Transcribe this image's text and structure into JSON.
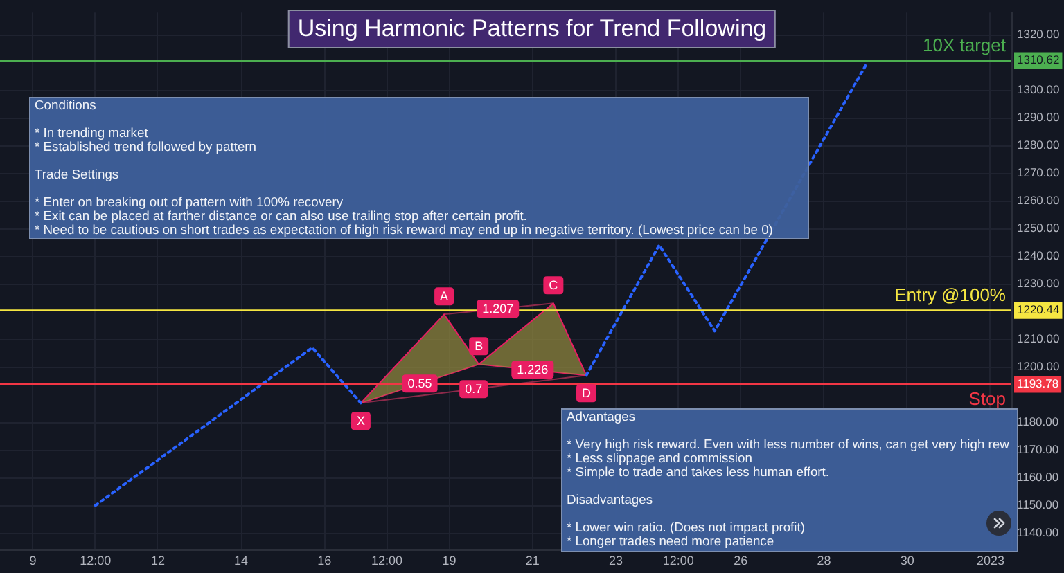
{
  "chart_data": {
    "type": "line",
    "title": "Using Harmonic Patterns for Trend Following",
    "xlim": [
      "2022-12-08T05:00",
      "2023-01-01T12:00"
    ],
    "ylim": [
      1134,
      1328
    ],
    "xticks": [
      {
        "value": "2022-12-09",
        "label": "9"
      },
      {
        "value": "2022-12-10T12:00",
        "label": "12:00"
      },
      {
        "value": "2022-12-12",
        "label": "12"
      },
      {
        "value": "2022-12-14",
        "label": "14"
      },
      {
        "value": "2022-12-16",
        "label": "16"
      },
      {
        "value": "2022-12-17T12:00",
        "label": "12:00"
      },
      {
        "value": "2022-12-19",
        "label": "19"
      },
      {
        "value": "2022-12-21",
        "label": "21"
      },
      {
        "value": "2022-12-23",
        "label": "23"
      },
      {
        "value": "2022-12-24T12:00",
        "label": "12:00"
      },
      {
        "value": "2022-12-26",
        "label": "26"
      },
      {
        "value": "2022-12-28",
        "label": "28"
      },
      {
        "value": "2022-12-30",
        "label": "30"
      },
      {
        "value": "2023-01-01",
        "label": "2023"
      }
    ],
    "yticks": [
      {
        "value": 1140,
        "label": "1140.00"
      },
      {
        "value": 1150,
        "label": "1150.00"
      },
      {
        "value": 1160,
        "label": "1160.00"
      },
      {
        "value": 1170,
        "label": "1170.00"
      },
      {
        "value": 1180,
        "label": "1180.00"
      },
      {
        "value": 1193.78,
        "label": "1193.78"
      },
      {
        "value": 1200,
        "label": "1200.00"
      },
      {
        "value": 1210,
        "label": "1210.00"
      },
      {
        "value": 1220.44,
        "label": "1220.44"
      },
      {
        "value": 1230,
        "label": "1230.00"
      },
      {
        "value": 1240,
        "label": "1240.00"
      },
      {
        "value": 1250,
        "label": "1250.00"
      },
      {
        "value": 1260,
        "label": "1260.00"
      },
      {
        "value": 1270,
        "label": "1270.00"
      },
      {
        "value": 1280,
        "label": "1280.00"
      },
      {
        "value": 1290,
        "label": "1290.00"
      },
      {
        "value": 1300,
        "label": "1300.00"
      },
      {
        "value": 1310.62,
        "label": "1310.62"
      },
      {
        "value": 1320,
        "label": "1320.00"
      }
    ],
    "grid": true,
    "series": [
      {
        "color": "#2962ff",
        "line_style": "dotted",
        "x": [
          "2022-12-10T12:00",
          "2022-12-15T17:00",
          "2022-12-16T21:00",
          "2022-12-19T12:00",
          "2022-12-22T07:00",
          "2022-12-24T01:00",
          "2022-12-25T09:00",
          "2022-12-29T01:00"
        ],
        "values": [
          1150,
          1207,
          1187,
          null,
          1197,
          1244,
          1213,
          1310
        ]
      },
      {
        "color": "#e91e63",
        "x": [
          "2022-12-16T21:00",
          "2022-12-18T21:00",
          "2022-12-19T17:00",
          "2022-12-21T12:00",
          "2022-12-22T07:00"
        ],
        "values": [
          1187,
          1219,
          1201,
          1223,
          1197
        ]
      },
      {
        "color": "#e91e63",
        "x": [
          "2022-12-16T21:00",
          "2022-12-19T17:00",
          "2022-12-22T07:00"
        ],
        "values": [
          1187,
          1201,
          1197
        ]
      },
      {
        "color": "#8c2a4a",
        "x": [
          "2022-12-18T21:00",
          "2022-12-21T12:00"
        ],
        "values": [
          1219,
          1223
        ]
      },
      {
        "color": "#8c2a4a",
        "x": [
          "2022-12-16T21:00",
          "2022-12-22T07:00"
        ],
        "values": [
          1187,
          1197
        ]
      }
    ],
    "ref_lines": [
      {
        "axis": "y",
        "value": 1310.62,
        "label": "10X target",
        "color": "#4caf50"
      },
      {
        "axis": "y",
        "value": 1220.44,
        "label": "Entry @100%",
        "color": "#f5e642"
      },
      {
        "axis": "y",
        "value": 1193.78,
        "label": "Stop",
        "color": "#f23645"
      }
    ],
    "annotations": [
      "Conditions\n\n* In trending market\n* Established trend followed by pattern\n\nTrade Settings\n\n* Enter on breaking out of pattern with 100% recovery\n* Exit can be placed at farther distance or can also use trailing stop after certain profit.\n* Need to be cautious on short trades as expectation of high risk reward may end up in negative territory. (Lowest price can be 0)",
      "Advantages\n\n* Very high risk reward. Even with less number of wins, can get very high rew\n* Less slippage and commission\n* Simple to trade and takes less human effort.\n\nDisadvantages\n\n* Lower win ratio. (Does not impact profit)\n* Longer trades need more patience",
      {
        "text": "X",
        "x": "2022-12-16T21:00",
        "y": 1187
      },
      {
        "text": "A",
        "x": "2022-12-18T21:00",
        "y": 1219
      },
      {
        "text": "B",
        "x": "2022-12-19T17:00",
        "y": 1201
      },
      {
        "text": "C",
        "x": "2022-12-21T12:00",
        "y": 1223
      },
      {
        "text": "D",
        "x": "2022-12-22T07:00",
        "y": 1197
      },
      {
        "text": "1.207",
        "x": "2022-12-20T04:00",
        "y": 1221
      },
      {
        "text": "0.55",
        "x": "2022-12-18T07:00",
        "y": 1194
      },
      {
        "text": "1.226",
        "x": "2022-12-21T00:00",
        "y": 1199
      },
      {
        "text": "0.7",
        "x": "2022-12-19T14:00",
        "y": 1192
      }
    ]
  }
}
